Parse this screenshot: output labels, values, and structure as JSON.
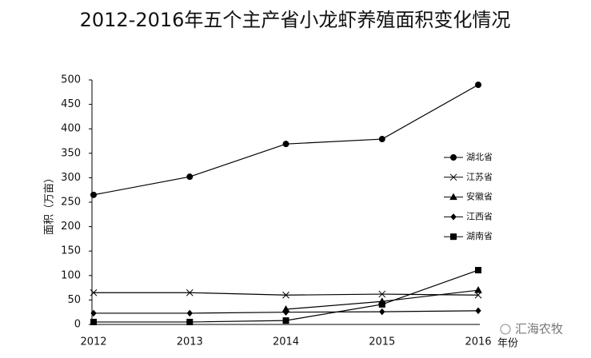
{
  "chart_data": {
    "type": "line",
    "title": "2012-2016年五个主产省小龙虾养殖面积变化情况",
    "y_label": "面积（万亩）",
    "x_label": "年份",
    "watermark": "汇海农牧",
    "categories": [
      "2012",
      "2013",
      "2014",
      "2015",
      "2016"
    ],
    "series": [
      {
        "name": "湖北省",
        "color": "#000000",
        "marker": "circle",
        "values": [
          265,
          302,
          369,
          379,
          490
        ]
      },
      {
        "name": "江苏省",
        "color": "#000000",
        "marker": "x",
        "values": [
          65,
          65,
          60,
          62,
          60
        ]
      },
      {
        "name": "安徽省",
        "color": "#000000",
        "marker": "triangle",
        "values": [
          null,
          null,
          31,
          47,
          70
        ]
      },
      {
        "name": "江西省",
        "color": "#000000",
        "marker": "diamond",
        "values": [
          23,
          23,
          25,
          26,
          28
        ]
      },
      {
        "name": "湖南省",
        "color": "#000000",
        "marker": "square",
        "values": [
          5,
          5,
          8,
          41,
          111
        ]
      }
    ],
    "ylim": [
      0,
      500
    ],
    "yticks": [
      0,
      50,
      100,
      150,
      200,
      250,
      300,
      350,
      400,
      450,
      500
    ],
    "grid": false,
    "legend": "right"
  }
}
